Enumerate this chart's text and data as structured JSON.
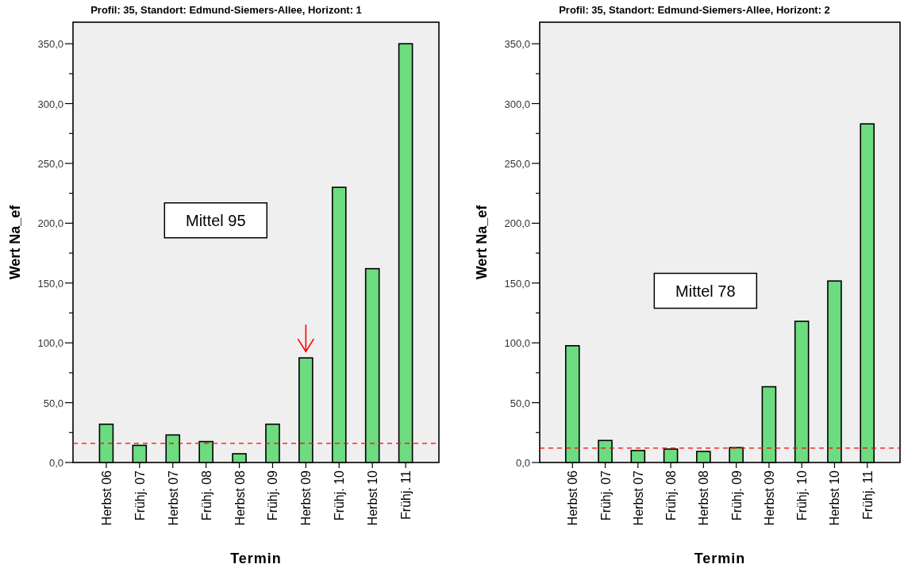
{
  "chart_data": [
    {
      "type": "bar",
      "title": "Profil: 35, Standort: Edmund-Siemers-Allee, Horizont: 1",
      "xlabel": "Termin",
      "ylabel": "Wert Na_ef",
      "categories": [
        "Herbst 06",
        "Frühj. 07",
        "Herbst 07",
        "Frühj. 08",
        "Herbst 08",
        "Frühj. 09",
        "Herbst 09",
        "Frühj. 10",
        "Herbst 10",
        "Frühj. 11"
      ],
      "values": [
        32,
        14.3,
        23,
        17.5,
        7.3,
        32,
        87.4,
        230,
        162,
        350
      ],
      "color": "#6ddb80",
      "ylim": [
        0,
        368
      ],
      "yticks": [
        {
          "value": 0,
          "label": "0,0"
        },
        {
          "value": 25,
          "label": null
        },
        {
          "value": 50,
          "label": "50,0"
        },
        {
          "value": 75,
          "label": null
        },
        {
          "value": 100,
          "label": "100,0"
        },
        {
          "value": 125,
          "label": null
        },
        {
          "value": 150,
          "label": "150,0"
        },
        {
          "value": 175,
          "label": null
        },
        {
          "value": 200,
          "label": "200,0"
        },
        {
          "value": 225,
          "label": null
        },
        {
          "value": 250,
          "label": "250,0"
        },
        {
          "value": 275,
          "label": null
        },
        {
          "value": 300,
          "label": "300,0"
        },
        {
          "value": 325,
          "label": null
        },
        {
          "value": 350,
          "label": "350,0"
        }
      ],
      "ref_lines": [
        {
          "axis": "y",
          "value": 16,
          "color": "#ff0000",
          "line_style": "dashed"
        }
      ],
      "annotations": [
        "Mittel 95"
      ]
    },
    {
      "type": "bar",
      "title": "Profil: 35, Standort: Edmund-Siemers-Allee, Horizont: 2",
      "xlabel": "Termin",
      "ylabel": "Wert Na_ef",
      "categories": [
        "Herbst 06",
        "Frühj. 07",
        "Herbst 07",
        "Frühj. 08",
        "Herbst 08",
        "Frühj. 09",
        "Herbst 09",
        "Frühj. 10",
        "Herbst 10",
        "Frühj. 11"
      ],
      "values": [
        97.6,
        18.4,
        10,
        11.2,
        9.2,
        12.4,
        63.3,
        118,
        151.7,
        283
      ],
      "color": "#6ddb80",
      "ylim": [
        0,
        368
      ],
      "yticks": [
        {
          "value": 0,
          "label": "0,0"
        },
        {
          "value": 25,
          "label": null
        },
        {
          "value": 50,
          "label": "50,0"
        },
        {
          "value": 75,
          "label": null
        },
        {
          "value": 100,
          "label": "100,0"
        },
        {
          "value": 125,
          "label": null
        },
        {
          "value": 150,
          "label": "150,0"
        },
        {
          "value": 175,
          "label": null
        },
        {
          "value": 200,
          "label": "200,0"
        },
        {
          "value": 225,
          "label": null
        },
        {
          "value": 250,
          "label": "250,0"
        },
        {
          "value": 275,
          "label": null
        },
        {
          "value": 300,
          "label": "300,0"
        },
        {
          "value": 325,
          "label": null
        },
        {
          "value": 350,
          "label": "350,0"
        }
      ],
      "ref_lines": [
        {
          "axis": "y",
          "value": 12,
          "color": "#ff0000",
          "line_style": "dashed"
        }
      ],
      "annotations": [
        "Mittel 78"
      ]
    }
  ]
}
